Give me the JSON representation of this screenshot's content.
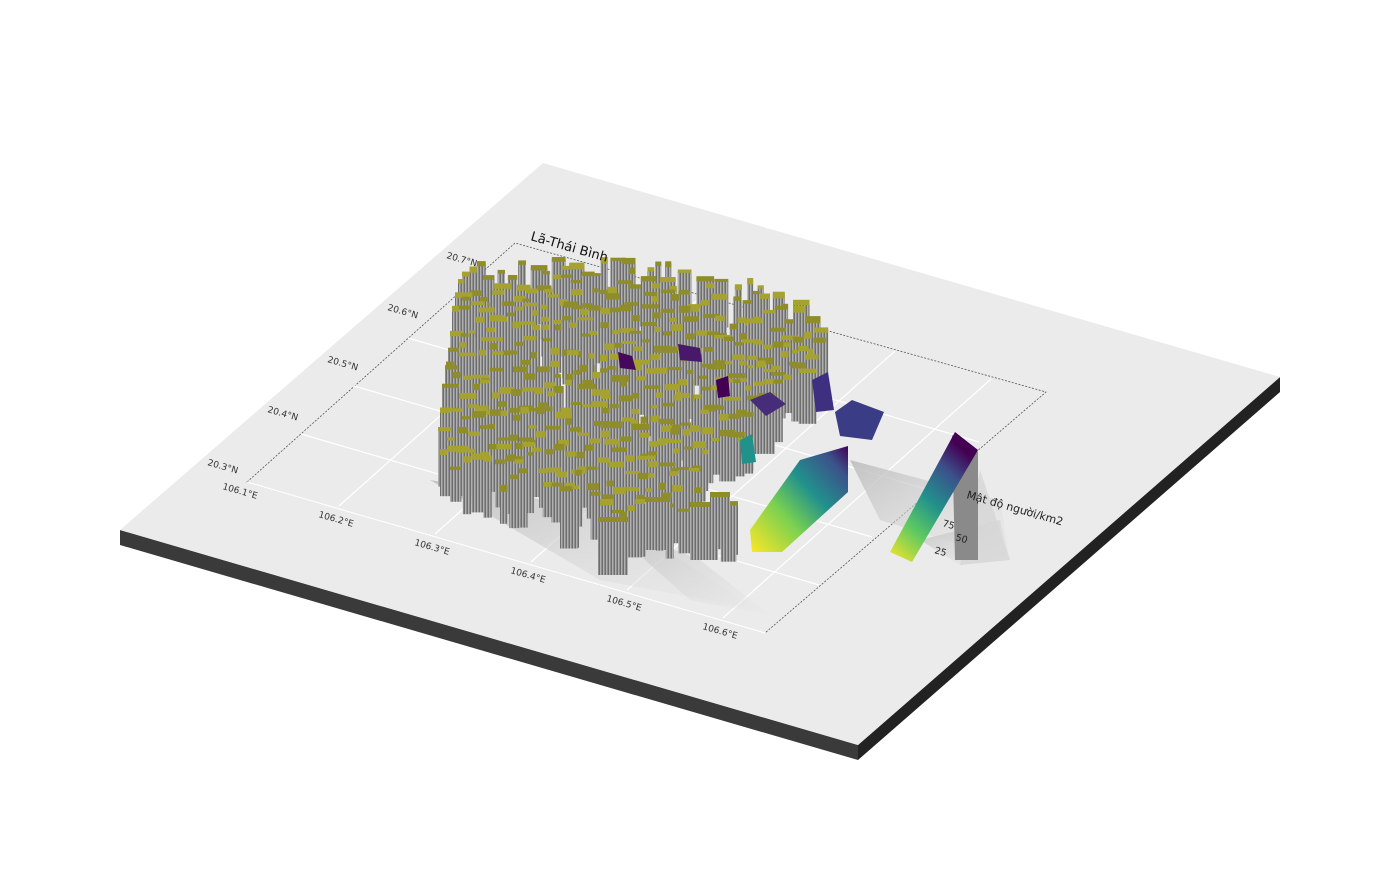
{
  "map": {
    "title": "Lã-Thái Bình",
    "lat_ticks": [
      "20.3°N",
      "20.4°N",
      "20.5°N",
      "20.6°N",
      "20.7°N"
    ],
    "lon_ticks": [
      "106.1°E",
      "106.2°E",
      "106.3°E",
      "106.4°E",
      "106.5°E",
      "106.6°E"
    ],
    "legend": {
      "title": "Mật độ người/km2",
      "labels": [
        "25",
        "50",
        "75"
      ]
    },
    "colors": {
      "low": "#fde725",
      "mid": "#21918c",
      "high": "#440154",
      "surface_top": "#8f8d2a",
      "wall": "#8c8c8c",
      "board": "#ebebeb",
      "board_side": "#2a2a2a"
    }
  }
}
